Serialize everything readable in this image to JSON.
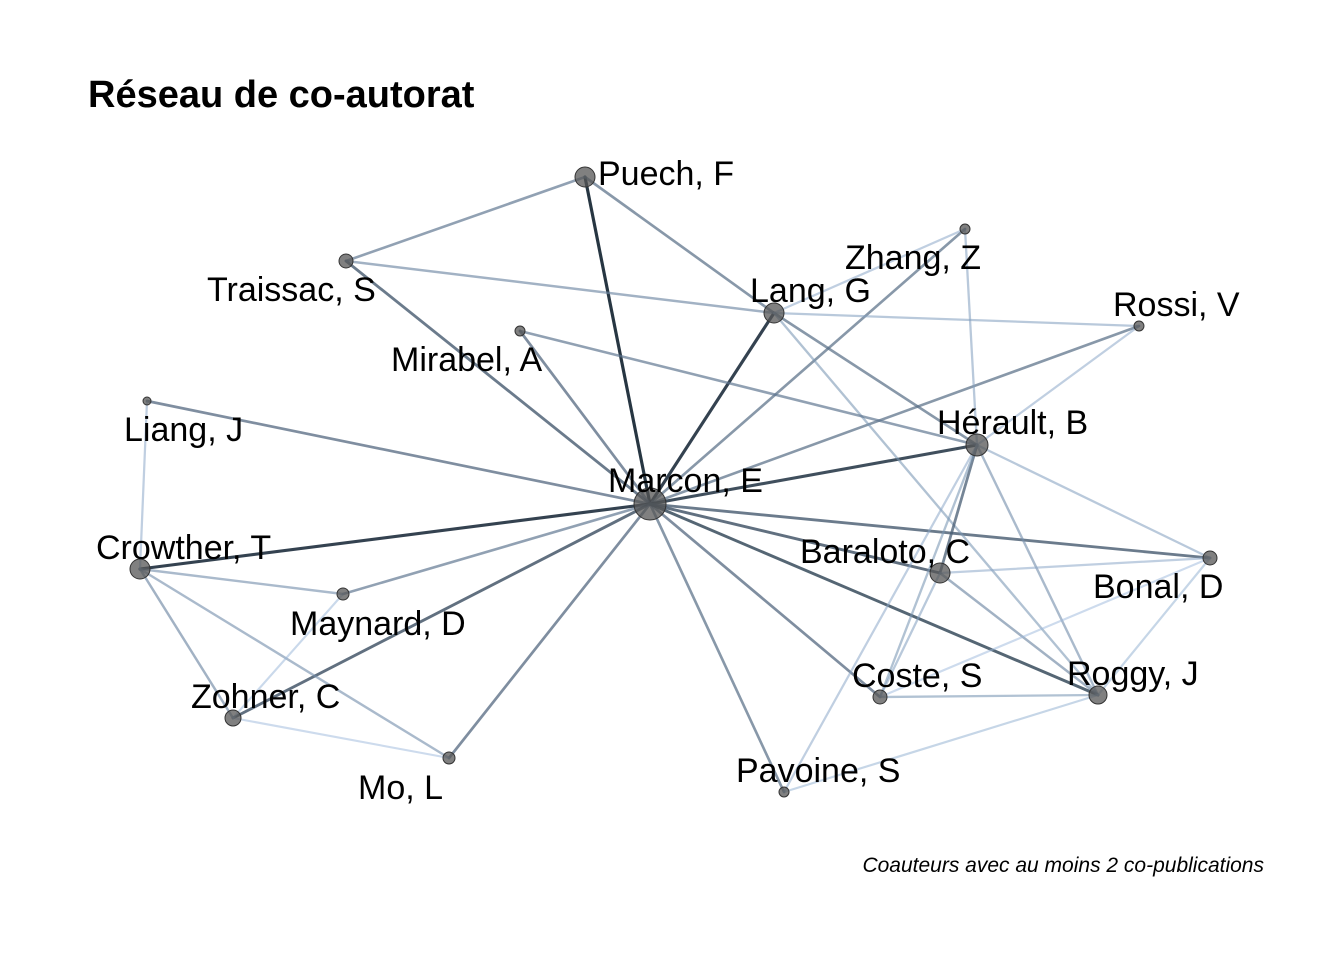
{
  "title": "Réseau de co-autorat",
  "caption": "Coauteurs avec au moins 2 co-publications",
  "colors": {
    "edge_weak": "#a8c8ee",
    "edge_strong": "#10202e",
    "node_fill": "#555555"
  },
  "nodes": [
    {
      "id": "marcon",
      "label": "Marcon, E"
    },
    {
      "id": "puech",
      "label": "Puech, F"
    },
    {
      "id": "traissac",
      "label": "Traissac, S"
    },
    {
      "id": "zhang",
      "label": "Zhang, Z"
    },
    {
      "id": "lang",
      "label": "Lang, G"
    },
    {
      "id": "rossi",
      "label": "Rossi, V"
    },
    {
      "id": "mirabel",
      "label": "Mirabel, A"
    },
    {
      "id": "herault",
      "label": "Hérault, B"
    },
    {
      "id": "liang",
      "label": "Liang, J"
    },
    {
      "id": "crowther",
      "label": "Crowther, T"
    },
    {
      "id": "baraloto",
      "label": "Baraloto, C"
    },
    {
      "id": "bonal",
      "label": "Bonal, D"
    },
    {
      "id": "maynard",
      "label": "Maynard, D"
    },
    {
      "id": "coste",
      "label": "Coste, S"
    },
    {
      "id": "roggy",
      "label": "Roggy, J"
    },
    {
      "id": "zohner",
      "label": "Zohner, C"
    },
    {
      "id": "mo",
      "label": "Mo, L"
    },
    {
      "id": "pavoine",
      "label": "Pavoine, S"
    }
  ],
  "edges": [
    [
      "marcon",
      "puech",
      1.0
    ],
    [
      "marcon",
      "traissac",
      0.7
    ],
    [
      "marcon",
      "mirabel",
      0.6
    ],
    [
      "marcon",
      "lang",
      0.95
    ],
    [
      "marcon",
      "zhang",
      0.55
    ],
    [
      "marcon",
      "rossi",
      0.55
    ],
    [
      "marcon",
      "herault",
      0.9
    ],
    [
      "marcon",
      "liang",
      0.6
    ],
    [
      "marcon",
      "crowther",
      0.95
    ],
    [
      "marcon",
      "maynard",
      0.5
    ],
    [
      "marcon",
      "zohner",
      0.75
    ],
    [
      "marcon",
      "mo",
      0.6
    ],
    [
      "marcon",
      "pavoine",
      0.55
    ],
    [
      "marcon",
      "coste",
      0.6
    ],
    [
      "marcon",
      "roggy",
      0.8
    ],
    [
      "marcon",
      "baraloto",
      0.75
    ],
    [
      "marcon",
      "bonal",
      0.7
    ],
    [
      "puech",
      "traissac",
      0.5
    ],
    [
      "puech",
      "lang",
      0.55
    ],
    [
      "traissac",
      "lang",
      0.4
    ],
    [
      "lang",
      "rossi",
      0.25
    ],
    [
      "lang",
      "herault",
      0.55
    ],
    [
      "lang",
      "roggy",
      0.3
    ],
    [
      "zhang",
      "herault",
      0.25
    ],
    [
      "zhang",
      "lang",
      0.2
    ],
    [
      "mirabel",
      "herault",
      0.5
    ],
    [
      "rossi",
      "herault",
      0.2
    ],
    [
      "herault",
      "baraloto",
      0.65
    ],
    [
      "herault",
      "coste",
      0.3
    ],
    [
      "herault",
      "pavoine",
      0.2
    ],
    [
      "herault",
      "bonal",
      0.25
    ],
    [
      "herault",
      "roggy",
      0.35
    ],
    [
      "baraloto",
      "bonal",
      0.2
    ],
    [
      "baraloto",
      "roggy",
      0.4
    ],
    [
      "baraloto",
      "coste",
      0.25
    ],
    [
      "bonal",
      "coste",
      0.1
    ],
    [
      "bonal",
      "roggy",
      0.15
    ],
    [
      "coste",
      "roggy",
      0.3
    ],
    [
      "roggy",
      "pavoine",
      0.15
    ],
    [
      "liang",
      "crowther",
      0.2
    ],
    [
      "crowther",
      "maynard",
      0.35
    ],
    [
      "crowther",
      "zohner",
      0.4
    ],
    [
      "crowther",
      "mo",
      0.35
    ],
    [
      "maynard",
      "zohner",
      0.12
    ],
    [
      "zohner",
      "mo",
      0.1
    ]
  ]
}
